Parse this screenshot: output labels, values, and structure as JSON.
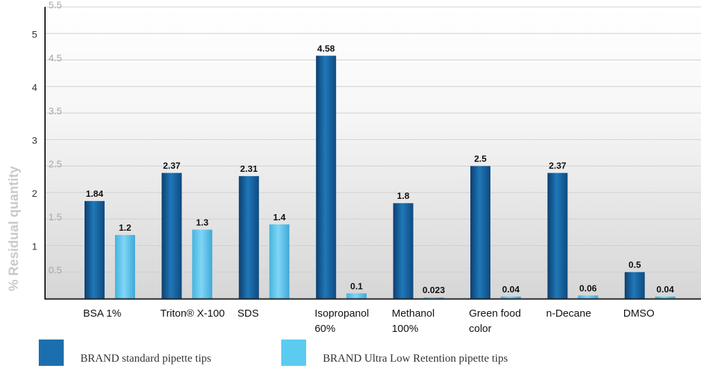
{
  "chart_data": {
    "type": "bar",
    "ylabel": "% Residual quantity",
    "ylim": [
      0,
      5.5
    ],
    "yticks": [
      "0.5",
      "1",
      "1.5",
      "2",
      "2.5",
      "3",
      "3.5",
      "4",
      "4.5",
      "5",
      "5.5"
    ],
    "grid": true,
    "categories": [
      [
        "BSA 1%"
      ],
      [
        "Triton® X-100"
      ],
      [
        "SDS"
      ],
      [
        "Isopropanol",
        "60%"
      ],
      [
        "Methanol",
        "100%"
      ],
      [
        "Green food",
        "color"
      ],
      [
        "n-Decane"
      ],
      [
        "DMSO"
      ]
    ],
    "series": [
      {
        "name": "BRAND standard pipette tips",
        "color": "#1c6fae",
        "values": [
          1.84,
          2.37,
          2.31,
          4.58,
          1.8,
          2.5,
          2.37,
          0.5
        ],
        "labels": [
          "1.84",
          "2.37",
          "2.31",
          "4.58",
          "1.8",
          "2.5",
          "2.37",
          "0.5"
        ]
      },
      {
        "name": "BRAND Ultra Low Retention pipette tips",
        "color": "#5ccbf0",
        "values": [
          1.2,
          1.3,
          1.4,
          0.1,
          0.023,
          0.04,
          0.06,
          0.04
        ],
        "labels": [
          "1.2",
          "1.3",
          "1.4",
          "0.1",
          "0.023",
          "0.04",
          "0.06",
          "0.04"
        ]
      }
    ],
    "legend_position": "bottom"
  }
}
